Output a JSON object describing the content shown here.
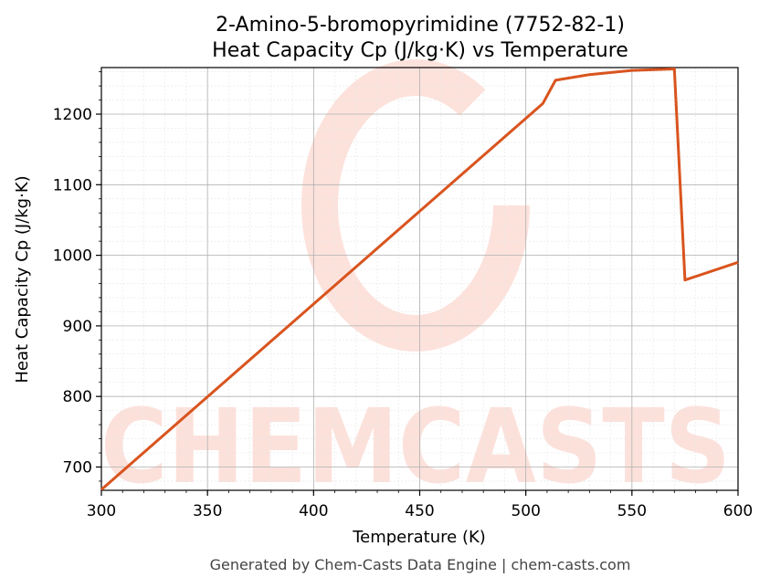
{
  "chart_data": {
    "type": "line",
    "title": "2-Amino-5-bromopyrimidine (7752-82-1)",
    "subtitle": "Heat Capacity Cp (J/kg·K) vs Temperature",
    "xlabel": "Temperature (K)",
    "ylabel": "Heat Capacity Cp (J/kg·K)",
    "xlim": [
      300,
      600
    ],
    "ylim": [
      667,
      1266
    ],
    "x_ticks": [
      "300",
      "350",
      "400",
      "450",
      "500",
      "550",
      "600"
    ],
    "y_ticks": [
      "700",
      "800",
      "900",
      "1000",
      "1100",
      "1200"
    ],
    "grid": true,
    "line_color": "#d9541e",
    "series": [
      {
        "x": [
          300,
          508,
          514,
          530,
          550,
          570,
          575,
          600
        ],
        "values": [
          668,
          1215,
          1248,
          1256,
          1262,
          1264,
          965,
          990
        ]
      }
    ]
  },
  "watermark": "CHEMCASTS",
  "footer": "Generated by Chem-Casts Data Engine | chem-casts.com"
}
